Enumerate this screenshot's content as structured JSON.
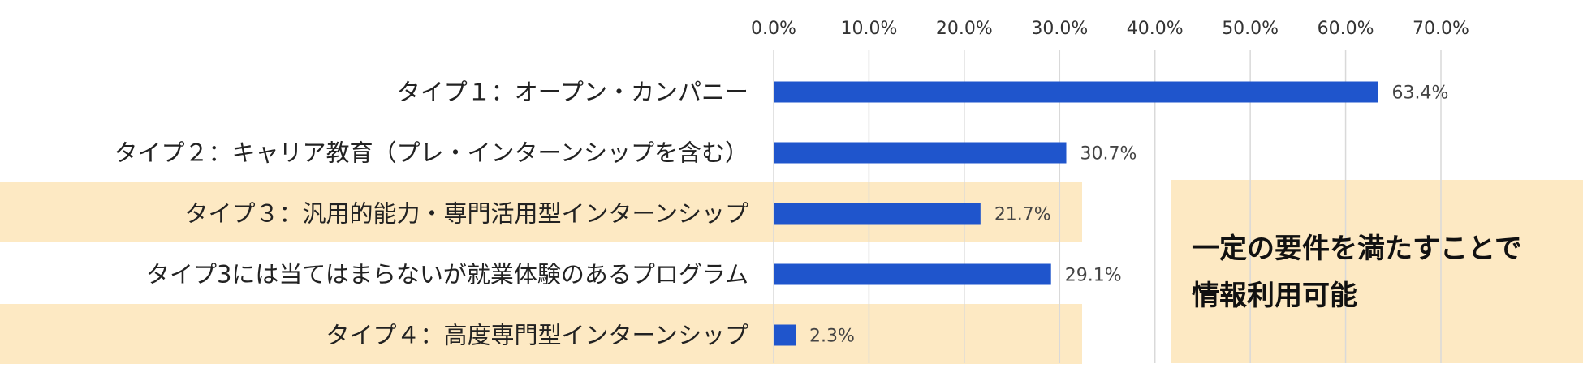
{
  "chart_data": {
    "type": "bar",
    "orientation": "horizontal",
    "categories": [
      "タイプ１：オープン・カンパニー",
      "タイプ２：キャリア教育（プレ・インターンシップを含む）",
      "タイプ３：汎用的能力・専門活用型インターンシップ",
      "タイプ3には当てはまらないが就業体験のあるプログラム",
      "タイプ４：高度専門型インターンシップ"
    ],
    "values": [
      63.4,
      30.7,
      21.7,
      29.1,
      2.3
    ],
    "value_labels": [
      "63.4%",
      "30.7%",
      "21.7%",
      "29.1%",
      "2.3%"
    ],
    "xlim": [
      0,
      70
    ],
    "x_ticks": [
      0,
      10,
      20,
      30,
      40,
      50,
      60,
      70
    ],
    "x_tick_labels": [
      "0.0%",
      "10.0%",
      "20.0%",
      "30.0%",
      "40.0%",
      "50.0%",
      "60.0%",
      "70.0%"
    ],
    "x_axis_position": "top",
    "grid": true,
    "highlighted_categories": [
      2,
      4
    ],
    "colors": {
      "bar": "#1f55cc",
      "highlight": "#fde9c3",
      "grid": "#d9d9d9"
    }
  },
  "note": {
    "lines": [
      "一定の要件を満たすことで",
      "情報利用可能"
    ]
  }
}
